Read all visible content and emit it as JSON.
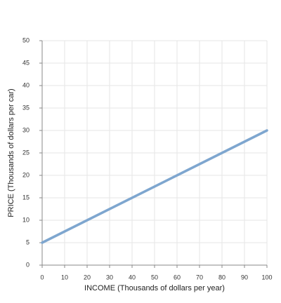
{
  "chart_data": {
    "type": "line",
    "xlabel": "INCOME (Thousands of dollars per year)",
    "ylabel": "PRICE (Thousands of dollars per car)",
    "x": [
      0,
      100
    ],
    "series": [
      {
        "color": "#7ea6cf",
        "values": [
          5,
          30
        ]
      }
    ],
    "xlim": [
      0,
      100
    ],
    "xticks": [
      0,
      10,
      20,
      30,
      40,
      50,
      60,
      70,
      80,
      90,
      100
    ],
    "ylim": [
      0,
      50
    ],
    "yticks": [
      0,
      5,
      10,
      15,
      20,
      25,
      30,
      35,
      40,
      45,
      50
    ],
    "grid": true
  }
}
